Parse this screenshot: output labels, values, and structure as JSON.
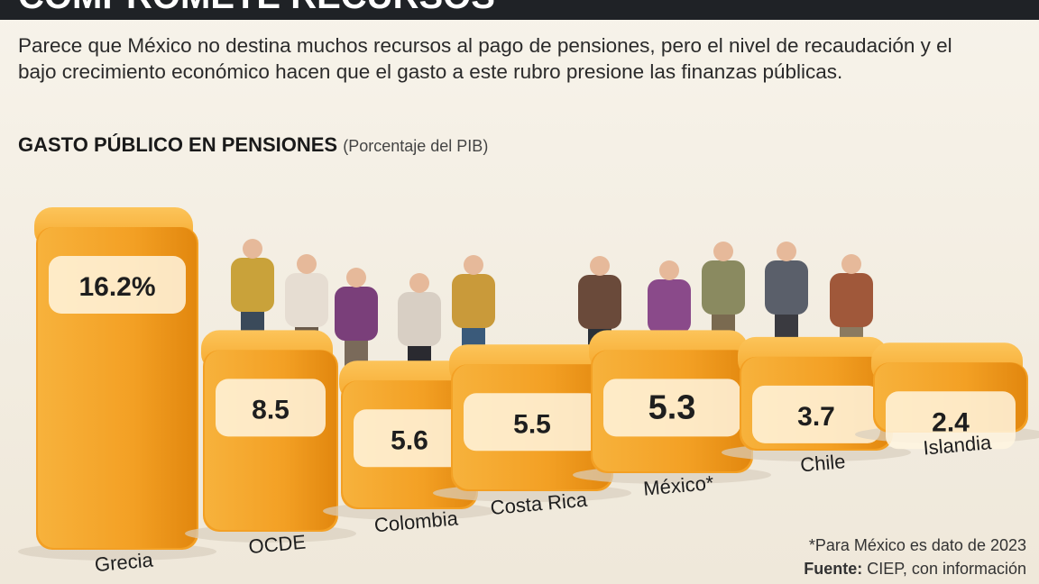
{
  "chart_data": {
    "type": "bar",
    "banner": "COMPROMETE RECURSOS",
    "subtitle": "Parece que México no destina muchos recursos al pago de pensiones, pero el nivel de recaudación y el bajo crecimiento económico hacen que el gasto a este rubro presione las finanzas públicas.",
    "title": "GASTO PÚBLICO EN PENSIONES",
    "unit_note": "(Porcentaje del PIB)",
    "categories": [
      "Grecia",
      "OCDE",
      "Colombia",
      "Costa Rica",
      "México*",
      "Chile",
      "Islandia"
    ],
    "values": [
      16.2,
      8.5,
      5.6,
      5.5,
      5.3,
      3.7,
      2.4
    ],
    "value_labels": [
      "16.2%",
      "8.5",
      "5.6",
      "5.5",
      "5.3",
      "3.7",
      "2.4"
    ],
    "color": "#f3a024",
    "footnote": "*Para México es dato de 2023",
    "source_label": "Fuente:",
    "source": "CIEP, con información"
  }
}
